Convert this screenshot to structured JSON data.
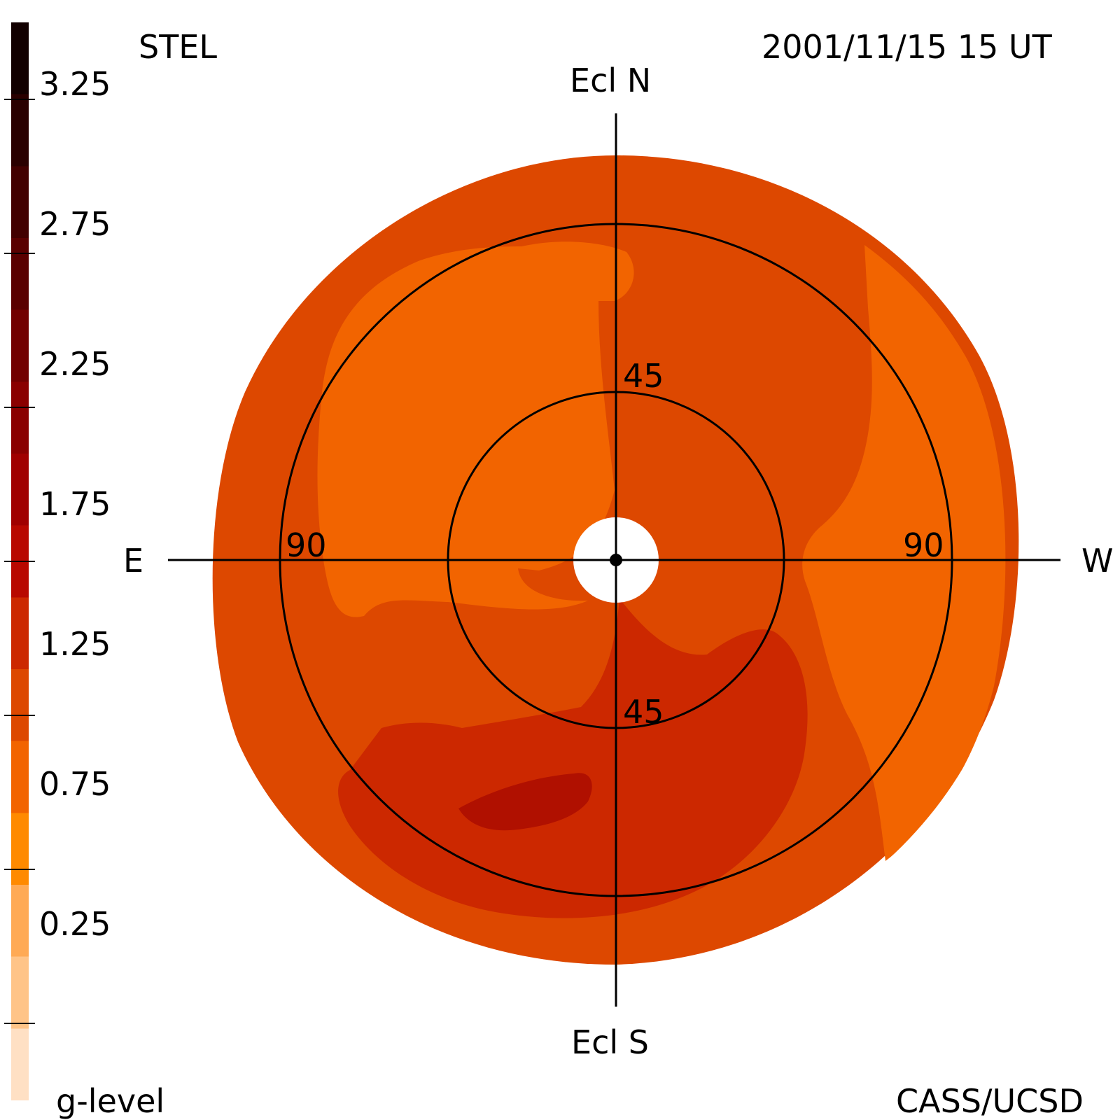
{
  "header": {
    "instrument": "STEL",
    "datetime": "2001/11/15 15 UT"
  },
  "footer": {
    "colorbar_label": "g-level",
    "credit": "CASS/UCSD"
  },
  "compass": {
    "north": "Ecl N",
    "south": "Ecl S",
    "east": "E",
    "west": "W"
  },
  "rings": {
    "inner_north": "45",
    "inner_south": "45",
    "outer_east": "90",
    "outer_west": "90"
  },
  "colorbar": {
    "min": 0,
    "max": 3.5,
    "tick_labels": [
      "3.25",
      "2.75",
      "2.25",
      "1.75",
      "1.25",
      "0.75",
      "0.25"
    ],
    "tick_values": [
      3.25,
      2.75,
      2.25,
      1.75,
      1.25,
      0.75,
      0.25
    ],
    "colors_top_to_bottom": [
      "#120000",
      "#2a0000",
      "#420000",
      "#5a0000",
      "#720000",
      "#8a0000",
      "#a00000",
      "#b80800",
      "#cc2800",
      "#dd4800",
      "#f26400",
      "#ff8a00",
      "#ffaa55",
      "#ffc488",
      "#ffe0c4"
    ]
  },
  "map_colors": {
    "level_high": "#b01000",
    "level_mid_high": "#cc2800",
    "level_mid": "#dd4800",
    "level_low": "#f26400",
    "sun_occulter": "#ffffff"
  }
}
